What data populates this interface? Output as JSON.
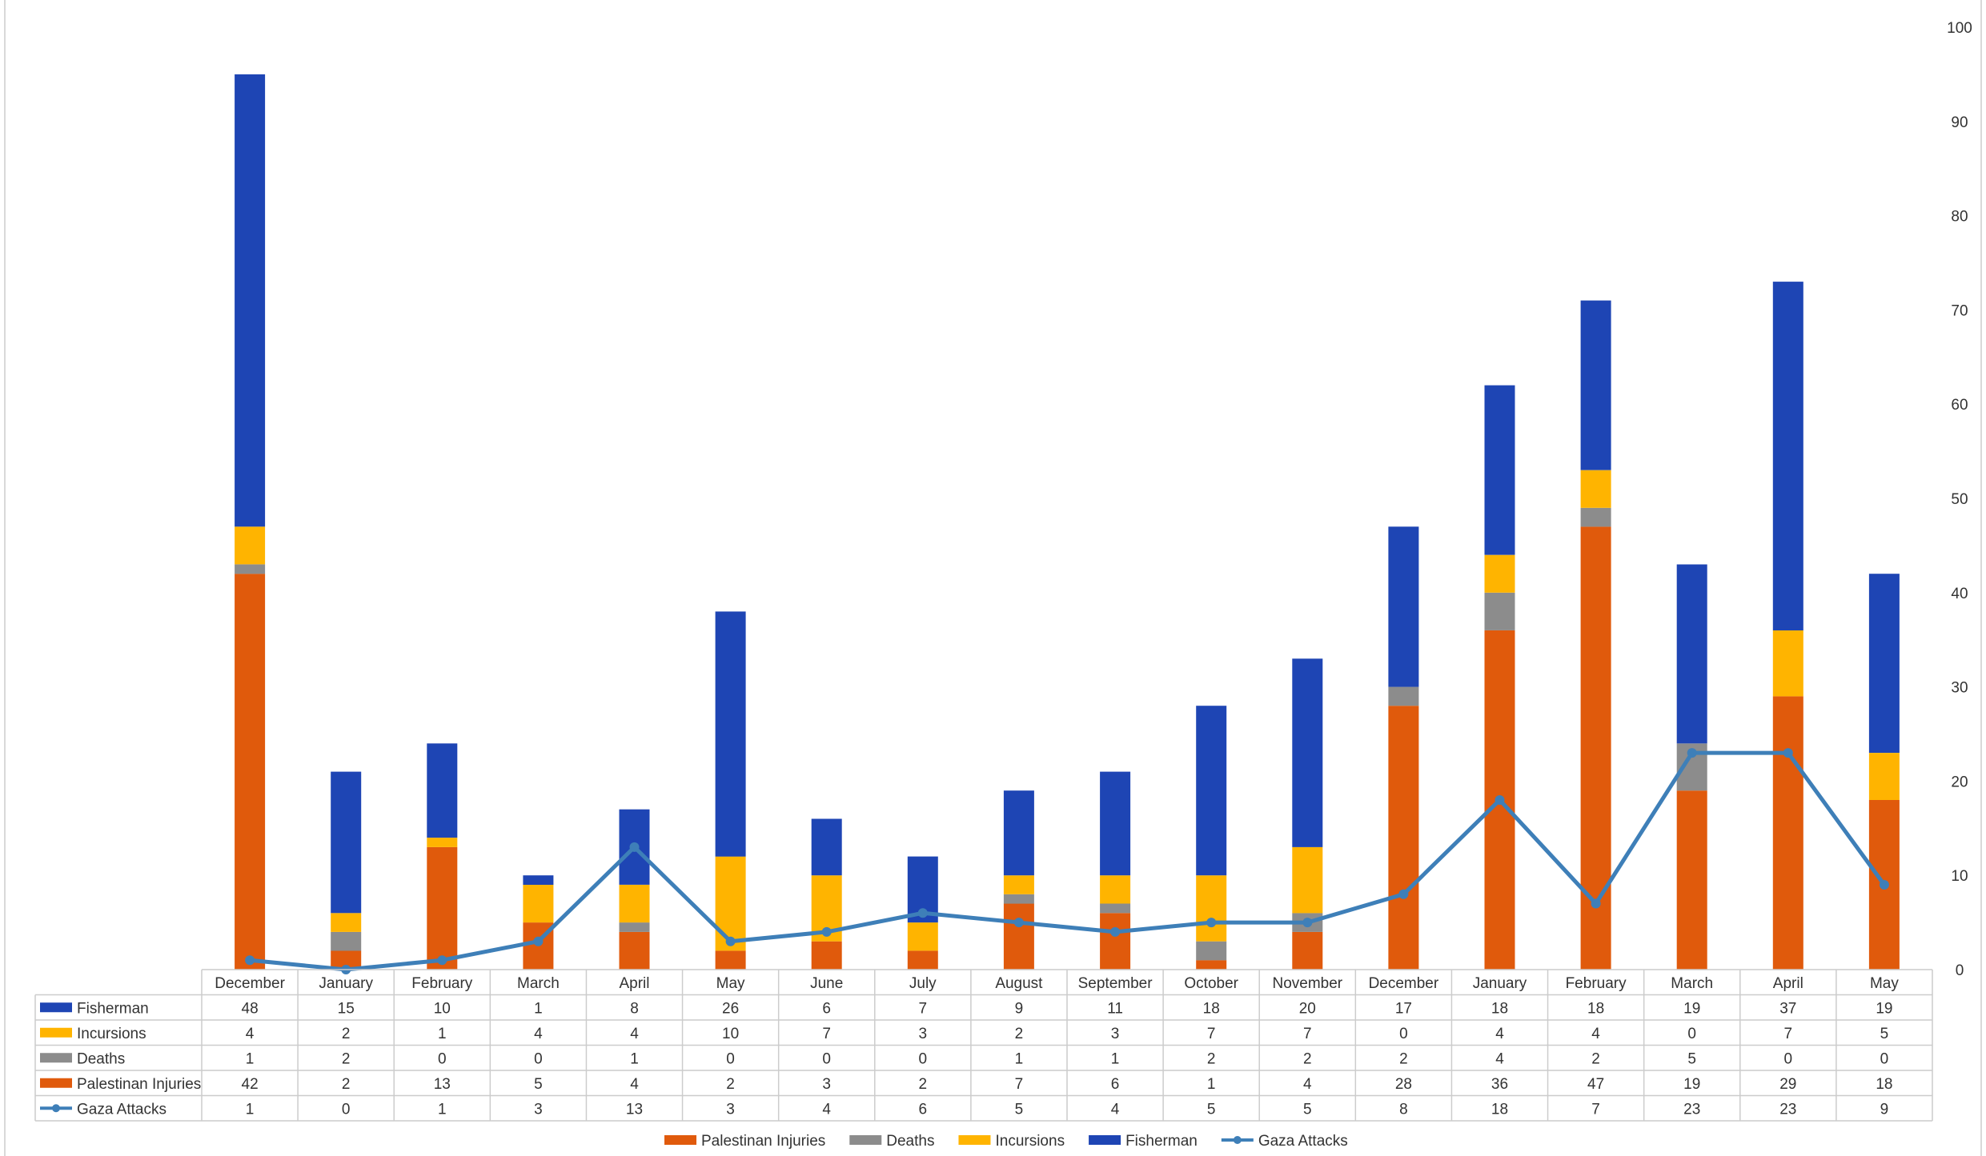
{
  "chart_data": {
    "type": "bar",
    "stacked": true,
    "categories": [
      "December",
      "January",
      "February",
      "March",
      "April",
      "May",
      "June",
      "July",
      "August",
      "September",
      "October",
      "November",
      "December",
      "January",
      "February",
      "March",
      "April",
      "May"
    ],
    "series": [
      {
        "name": "Palestinan Injuries",
        "kind": "bar",
        "color": "#E05A0C",
        "values": [
          42,
          2,
          13,
          5,
          4,
          2,
          3,
          2,
          7,
          6,
          1,
          4,
          28,
          36,
          47,
          19,
          29,
          18
        ]
      },
      {
        "name": "Deaths",
        "kind": "bar",
        "color": "#8C8C8C",
        "values": [
          1,
          2,
          0,
          0,
          1,
          0,
          0,
          0,
          1,
          1,
          2,
          2,
          2,
          4,
          2,
          5,
          0,
          0
        ]
      },
      {
        "name": "Incursions",
        "kind": "bar",
        "color": "#FFB400",
        "values": [
          4,
          2,
          1,
          4,
          4,
          10,
          7,
          3,
          2,
          3,
          7,
          7,
          0,
          4,
          4,
          0,
          7,
          5
        ]
      },
      {
        "name": "Fisherman",
        "kind": "bar",
        "color": "#1E45B4",
        "values": [
          48,
          15,
          10,
          1,
          8,
          26,
          6,
          7,
          9,
          11,
          18,
          20,
          17,
          18,
          18,
          19,
          37,
          19
        ]
      },
      {
        "name": "Gaza Attacks",
        "kind": "line",
        "color": "#3E7FB8",
        "values": [
          1,
          0,
          1,
          3,
          13,
          3,
          4,
          6,
          5,
          4,
          5,
          5,
          8,
          18,
          7,
          23,
          23,
          9
        ]
      }
    ],
    "table_rows": [
      "Fisherman",
      "Incursions",
      "Deaths",
      "Palestinan Injuries",
      "Gaza Attacks"
    ],
    "y_axis": {
      "min": 0,
      "max": 100,
      "step": 10,
      "position": "right",
      "ticks": [
        "0",
        "10",
        "20",
        "30",
        "40",
        "50",
        "60",
        "70",
        "80",
        "90",
        "100"
      ]
    },
    "grid": false,
    "legend_position": "bottom",
    "legend_order": [
      "Palestinan Injuries",
      "Deaths",
      "Incursions",
      "Fisherman",
      "Gaza Attacks"
    ]
  }
}
